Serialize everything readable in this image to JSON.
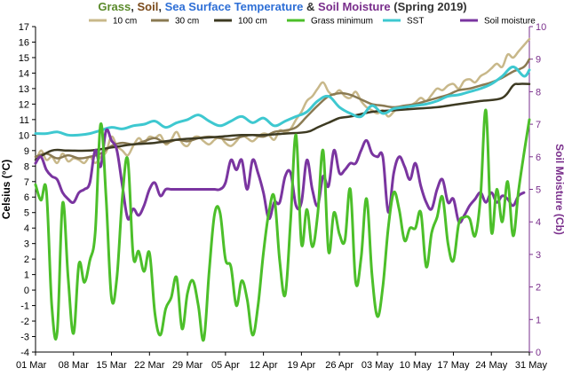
{
  "chart_data": {
    "type": "line",
    "title_parts": [
      {
        "text": "Grass",
        "color": "#5a8a2a"
      },
      {
        "text": ", ",
        "color": "#333333"
      },
      {
        "text": "Soil",
        "color": "#7a4a1a"
      },
      {
        "text": ", ",
        "color": "#333333"
      },
      {
        "text": "Sea Surface Temperature",
        "color": "#2e6fd6"
      },
      {
        "text": " & ",
        "color": "#333333"
      },
      {
        "text": "Soil Moisture",
        "color": "#7a2f8c"
      },
      {
        "text": " (Spring 2019)",
        "color": "#333333"
      }
    ],
    "ylabel": "Celsius (°C)",
    "y2label": "Soil Moisture (Cb)",
    "ylim": [
      -4,
      17
    ],
    "y2lim": [
      0,
      10
    ],
    "yticks": [
      -4,
      -3,
      -2,
      -1,
      0,
      1,
      2,
      3,
      4,
      5,
      6,
      7,
      8,
      9,
      10,
      11,
      12,
      13,
      14,
      15,
      16,
      17
    ],
    "y2ticks": [
      0,
      1,
      2,
      3,
      4,
      5,
      6,
      7,
      8,
      9,
      10
    ],
    "x_day_range": [
      0,
      91
    ],
    "xticks": [
      {
        "label": "01 Mar",
        "day": 0
      },
      {
        "label": "08 Mar",
        "day": 7
      },
      {
        "label": "15 Mar",
        "day": 14
      },
      {
        "label": "22 Mar",
        "day": 21
      },
      {
        "label": "29 Mar",
        "day": 28
      },
      {
        "label": "05 Apr",
        "day": 35
      },
      {
        "label": "12 Apr",
        "day": 42
      },
      {
        "label": "19 Apr",
        "day": 49
      },
      {
        "label": "26 Apr",
        "day": 56
      },
      {
        "label": "03 May",
        "day": 63
      },
      {
        "label": "10 May",
        "day": 70
      },
      {
        "label": "17 May",
        "day": 77
      },
      {
        "label": "24 May",
        "day": 84
      },
      {
        "label": "31 May",
        "day": 91
      }
    ],
    "legend": {
      "placement": "top"
    },
    "grid": false,
    "series": [
      {
        "name": "10 cm",
        "axis": "left",
        "color": "#c8b88a",
        "width": 2.5,
        "x": [
          0,
          1,
          2,
          3,
          4,
          5,
          6,
          7,
          8,
          9,
          10,
          11,
          12,
          13,
          14,
          15,
          16,
          17,
          18,
          19,
          20,
          21,
          22,
          23,
          24,
          25,
          26,
          27,
          28,
          29,
          30,
          31,
          32,
          33,
          34,
          35,
          36,
          37,
          38,
          39,
          40,
          41,
          42,
          43,
          44,
          45,
          46,
          47,
          48,
          49,
          50,
          51,
          52,
          53,
          54,
          55,
          56,
          57,
          58,
          59,
          60,
          61,
          62,
          63,
          64,
          65,
          66,
          67,
          68,
          69,
          70,
          71,
          72,
          73,
          74,
          75,
          76,
          77,
          78,
          79,
          80,
          81,
          82,
          83,
          84,
          85,
          86,
          87,
          88,
          89,
          90,
          91
        ],
        "y": [
          8.2,
          9.0,
          8.4,
          8.6,
          8.2,
          8.8,
          8.3,
          8.5,
          8.4,
          8.2,
          8.6,
          8.2,
          8.6,
          8.9,
          9.9,
          9.3,
          9.0,
          8.7,
          9.3,
          9.8,
          9.5,
          9.9,
          9.8,
          10.0,
          9.4,
          9.7,
          10.2,
          9.5,
          9.3,
          9.8,
          9.9,
          9.6,
          9.4,
          9.7,
          9.9,
          9.5,
          9.3,
          9.6,
          10.0,
          9.8,
          9.6,
          9.9,
          10.1,
          10.0,
          9.7,
          10.3,
          10.2,
          10.4,
          11.0,
          11.5,
          12.2,
          12.5,
          13.0,
          13.4,
          12.8,
          12.6,
          12.9,
          12.5,
          12.4,
          12.8,
          12.2,
          11.8,
          11.6,
          11.4,
          11.6,
          11.2,
          11.5,
          11.8,
          11.7,
          11.9,
          12.1,
          12.4,
          12.2,
          12.6,
          13.0,
          12.9,
          13.2,
          13.3,
          13.0,
          13.5,
          13.6,
          13.4,
          13.8,
          14.0,
          14.3,
          14.6,
          14.4,
          15.2,
          15.0,
          15.4,
          15.8,
          16.2
        ]
      },
      {
        "name": "30 cm",
        "axis": "left",
        "color": "#8a7a52",
        "width": 2.5,
        "x": [
          0,
          2,
          4,
          6,
          8,
          10,
          12,
          14,
          16,
          18,
          20,
          22,
          24,
          26,
          28,
          30,
          32,
          34,
          36,
          38,
          40,
          42,
          44,
          46,
          48,
          50,
          52,
          54,
          56,
          58,
          60,
          62,
          64,
          66,
          68,
          70,
          72,
          74,
          76,
          78,
          80,
          82,
          84,
          86,
          88,
          90,
          91
        ],
        "y": [
          8.6,
          8.8,
          8.5,
          8.7,
          8.5,
          8.6,
          8.8,
          9.3,
          9.5,
          9.4,
          9.6,
          9.8,
          9.5,
          9.7,
          9.6,
          9.8,
          9.9,
          9.8,
          9.7,
          9.9,
          10.0,
          9.9,
          10.2,
          10.3,
          10.5,
          11.2,
          11.9,
          12.5,
          12.7,
          12.6,
          12.3,
          12.0,
          11.9,
          11.8,
          11.9,
          12.0,
          12.2,
          12.4,
          12.6,
          12.9,
          13.0,
          13.2,
          13.4,
          13.7,
          14.1,
          14.4,
          14.9
        ]
      },
      {
        "name": "100 cm",
        "axis": "left",
        "color": "#3d3a22",
        "width": 2.5,
        "x": [
          0,
          3,
          6,
          10,
          14,
          18,
          22,
          26,
          30,
          34,
          38,
          42,
          46,
          50,
          52,
          54,
          56,
          58,
          62,
          66,
          70,
          74,
          78,
          82,
          86,
          88,
          89,
          91
        ],
        "y": [
          8.4,
          9.0,
          9.0,
          9.0,
          9.2,
          9.4,
          9.5,
          9.7,
          9.8,
          9.9,
          10.0,
          10.0,
          10.1,
          10.2,
          10.5,
          10.8,
          11.1,
          11.2,
          11.5,
          11.6,
          11.7,
          11.8,
          12.0,
          12.2,
          12.4,
          13.2,
          13.3,
          13.3
        ]
      },
      {
        "name": "Grass minimum",
        "axis": "left",
        "color": "#4cbf2a",
        "width": 3,
        "x": [
          0,
          1,
          2,
          3,
          4,
          5,
          6,
          7,
          8,
          9,
          10,
          11,
          12,
          13,
          14,
          15,
          16,
          17,
          18,
          19,
          20,
          21,
          22,
          23,
          24,
          25,
          26,
          27,
          28,
          29,
          30,
          31,
          32,
          33,
          34,
          35,
          36,
          37,
          38,
          39,
          40,
          41,
          42,
          43,
          44,
          45,
          46,
          47,
          48,
          49,
          50,
          51,
          52,
          53,
          54,
          55,
          56,
          57,
          58,
          59,
          60,
          61,
          62,
          63,
          64,
          65,
          66,
          67,
          68,
          69,
          70,
          71,
          72,
          73,
          74,
          75,
          76,
          77,
          78,
          79,
          80,
          81,
          82,
          83,
          84,
          85,
          86,
          87,
          88,
          89,
          90,
          91
        ],
        "y": [
          6.8,
          5.8,
          6.4,
          -1.0,
          -2.7,
          5.6,
          0.8,
          -2.8,
          1.7,
          0.5,
          1.9,
          3.7,
          10.7,
          6.0,
          -0.5,
          0.8,
          6.0,
          8.4,
          2.2,
          2.5,
          1.2,
          2.4,
          -1.5,
          -2.9,
          -1.2,
          -0.5,
          0.8,
          -2.5,
          -0.2,
          0.6,
          -1.0,
          -3.2,
          1.2,
          4.9,
          5.0,
          2.0,
          1.5,
          -1.0,
          0.6,
          -0.6,
          -2.9,
          -1.0,
          2.4,
          5.0,
          6.0,
          1.9,
          -0.3,
          4.5,
          10.0,
          3.0,
          5.2,
          2.8,
          4.9,
          9.0,
          2.5,
          5.0,
          3.6,
          3.2,
          6.5,
          0.5,
          2.1,
          5.9,
          1.0,
          -1.7,
          0.2,
          4.0,
          6.3,
          5.2,
          3.2,
          4.0,
          4.0,
          5.0,
          1.5,
          3.7,
          4.7,
          6.0,
          3.0,
          1.9,
          4.3,
          4.7,
          4.6,
          3.5,
          6.0,
          11.6,
          3.8,
          6.5,
          4.4,
          7.0,
          3.5,
          6.4,
          8.8,
          11.0
        ]
      },
      {
        "name": "SST",
        "axis": "left",
        "color": "#3ec8d0",
        "width": 3,
        "x": [
          0,
          2,
          4,
          6,
          8,
          10,
          12,
          14,
          16,
          18,
          20,
          22,
          24,
          26,
          28,
          30,
          32,
          34,
          36,
          38,
          40,
          42,
          44,
          46,
          48,
          50,
          52,
          54,
          56,
          58,
          60,
          62,
          64,
          66,
          68,
          70,
          72,
          74,
          76,
          78,
          80,
          82,
          84,
          86,
          88,
          90,
          91
        ],
        "y": [
          10.1,
          10.1,
          10.2,
          10.0,
          10.0,
          10.1,
          10.3,
          10.5,
          10.4,
          10.6,
          10.7,
          10.9,
          10.5,
          10.8,
          11.0,
          11.3,
          10.9,
          10.6,
          10.9,
          11.2,
          10.8,
          11.1,
          10.6,
          10.9,
          11.2,
          11.5,
          12.2,
          12.5,
          11.8,
          11.4,
          11.2,
          11.9,
          11.4,
          11.7,
          11.8,
          11.9,
          12.0,
          12.2,
          12.5,
          12.6,
          12.8,
          13.0,
          13.3,
          13.8,
          14.4,
          13.8,
          14.2
        ]
      },
      {
        "name": "Soil moisture",
        "axis": "right",
        "color": "#7a35a0",
        "width": 3,
        "x": [
          0,
          1,
          2,
          3,
          4,
          5,
          6,
          7,
          8,
          9,
          10,
          11,
          12,
          13,
          14,
          15,
          16,
          17,
          18,
          19,
          20,
          21,
          22,
          23,
          24,
          25,
          26,
          27,
          28,
          29,
          30,
          31,
          32,
          33,
          34,
          35,
          36,
          37,
          38,
          39,
          40,
          41,
          42,
          43,
          44,
          45,
          46,
          47,
          48,
          49,
          50,
          51,
          52,
          53,
          54,
          55,
          56,
          57,
          58,
          59,
          60,
          61,
          62,
          63,
          64,
          65,
          66,
          67,
          68,
          69,
          70,
          71,
          72,
          73,
          74,
          75,
          76,
          77,
          78,
          79,
          80,
          81,
          82,
          83,
          84,
          85,
          86,
          87,
          88,
          89,
          90
        ],
        "y": [
          5.8,
          6.0,
          5.6,
          5.4,
          5.3,
          4.9,
          4.7,
          4.6,
          4.9,
          5.0,
          5.2,
          6.2,
          5.7,
          6.8,
          6.5,
          6.2,
          5.1,
          4.1,
          4.4,
          4.2,
          4.5,
          5.0,
          5.2,
          4.8,
          5.0,
          5.0,
          5.0,
          5.0,
          5.0,
          5.0,
          5.0,
          5.0,
          5.0,
          5.0,
          5.0,
          5.2,
          5.9,
          5.6,
          5.9,
          5.0,
          5.9,
          5.5,
          4.9,
          4.1,
          4.6,
          4.6,
          5.4,
          5.5,
          4.5,
          4.6,
          5.9,
          5.0,
          4.5,
          5.4,
          5.1,
          6.2,
          5.5,
          5.6,
          5.8,
          5.8,
          6.2,
          6.5,
          6.1,
          6.0,
          6.0,
          4.3,
          5.5,
          6.0,
          5.7,
          5.3,
          5.8,
          5.1,
          4.6,
          4.4,
          5.0,
          5.3,
          4.6,
          4.7,
          4.0,
          4.2,
          4.5,
          4.7,
          4.9,
          4.6,
          4.9,
          4.6,
          4.8,
          4.7,
          4.5,
          4.8,
          4.9
        ]
      }
    ]
  }
}
